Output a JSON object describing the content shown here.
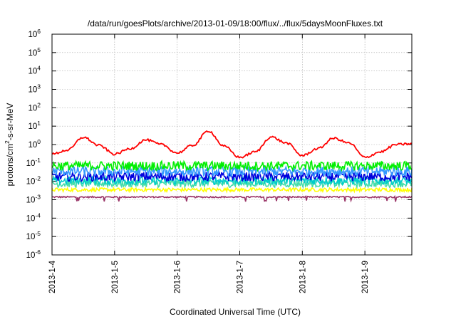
{
  "chart_data": {
    "type": "line",
    "title": "/data/run/goesPlots/archive/2013-01-09/18:00/flux/../flux/5daysMoonFluxes.txt",
    "xlabel": "Coordinated Universal Time (UTC)",
    "ylabel": {
      "pre": "protons/cm",
      "sup": "2",
      "post": "-s-sr-MeV"
    },
    "x_start": "2013-01-04",
    "x_end": "2013-01-09 18:00",
    "x_ticks": [
      "2013-1-4",
      "2013-1-5",
      "2013-1-6",
      "2013-1-7",
      "2013-1-8",
      "2013-1-9"
    ],
    "y_scale": "log",
    "ylim": [
      1e-06,
      1000000.0
    ],
    "y_ticks": [
      {
        "base": "10",
        "exp": "-6"
      },
      {
        "base": "10",
        "exp": "-5"
      },
      {
        "base": "10",
        "exp": "-4"
      },
      {
        "base": "10",
        "exp": "-3"
      },
      {
        "base": "10",
        "exp": "-2"
      },
      {
        "base": "10",
        "exp": "-1"
      },
      {
        "base": "10",
        "exp": "0"
      },
      {
        "base": "10",
        "exp": "1"
      },
      {
        "base": "10",
        "exp": "2"
      },
      {
        "base": "10",
        "exp": "3"
      },
      {
        "base": "10",
        "exp": "4"
      },
      {
        "base": "10",
        "exp": "5"
      },
      {
        "base": "10",
        "exp": "6"
      }
    ],
    "grid": true,
    "series": [
      {
        "color": "#ff0000",
        "day_hours": [
          0,
          6,
          12,
          18,
          24,
          30,
          36,
          42,
          48,
          54,
          60,
          66,
          72,
          78,
          84,
          90,
          96,
          102,
          108,
          114,
          120,
          126,
          132,
          138
        ],
        "values": [
          0.3,
          0.5,
          2.5,
          0.9,
          0.3,
          0.6,
          1.8,
          1.0,
          0.35,
          0.9,
          5.5,
          0.8,
          0.2,
          0.4,
          2.6,
          1.2,
          0.25,
          0.6,
          2.2,
          1.2,
          0.2,
          0.4,
          1.0,
          1.1
        ]
      },
      {
        "color": "#00ee00",
        "base": 0.07,
        "spread": 0.5
      },
      {
        "color": "#3399ff",
        "base": 0.035,
        "spread": 0.55
      },
      {
        "color": "#0000dd",
        "base": 0.018,
        "spread": 0.5
      },
      {
        "color": "#00cccc",
        "base": 0.011,
        "spread": 0.45
      },
      {
        "color": "#44ddaa",
        "base": 0.0075,
        "spread": 0.4
      },
      {
        "color": "#ffff00",
        "base": 0.0035,
        "spread": 0.2
      },
      {
        "color": "#993366",
        "base": 0.0014,
        "spread": 0.08
      }
    ]
  }
}
